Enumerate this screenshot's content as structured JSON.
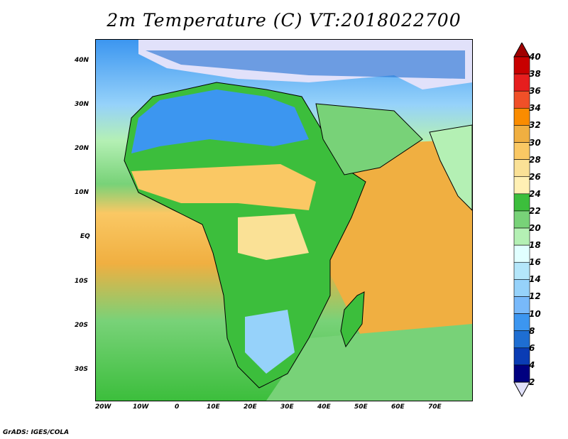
{
  "title": "2m Temperature (C) VT:2018022700",
  "credit": "GrADS: IGES/COLA",
  "map": {
    "lat_ticks": [
      "40N",
      "30N",
      "20N",
      "10N",
      "EQ",
      "10S",
      "20S",
      "30S"
    ],
    "lon_ticks": [
      "20W",
      "10W",
      "0",
      "10E",
      "20E",
      "30E",
      "40E",
      "50E",
      "60E",
      "70E"
    ],
    "colors": {
      "land_outline": "#000000",
      "ocean_cold": "#3c96f0",
      "ocean_warm": "#f0af41",
      "land_warm": "#f0c850"
    }
  },
  "colorbar": {
    "levels": [
      "40",
      "38",
      "36",
      "34",
      "32",
      "30",
      "28",
      "26",
      "24",
      "22",
      "20",
      "18",
      "16",
      "14",
      "12",
      "10",
      "8",
      "6",
      "4",
      "2"
    ],
    "colors": [
      "#a00000",
      "#c80000",
      "#e61e1e",
      "#f05028",
      "#fa8c00",
      "#f0af41",
      "#fac864",
      "#fae196",
      "#fff0b4",
      "#3cbe3c",
      "#78d278",
      "#b4f0b4",
      "#e1ffff",
      "#b4e6fa",
      "#96d2fa",
      "#78b9fa",
      "#3c96f0",
      "#1e6ed2",
      "#0a3cb4",
      "#000080",
      "#e1e1fa"
    ]
  }
}
